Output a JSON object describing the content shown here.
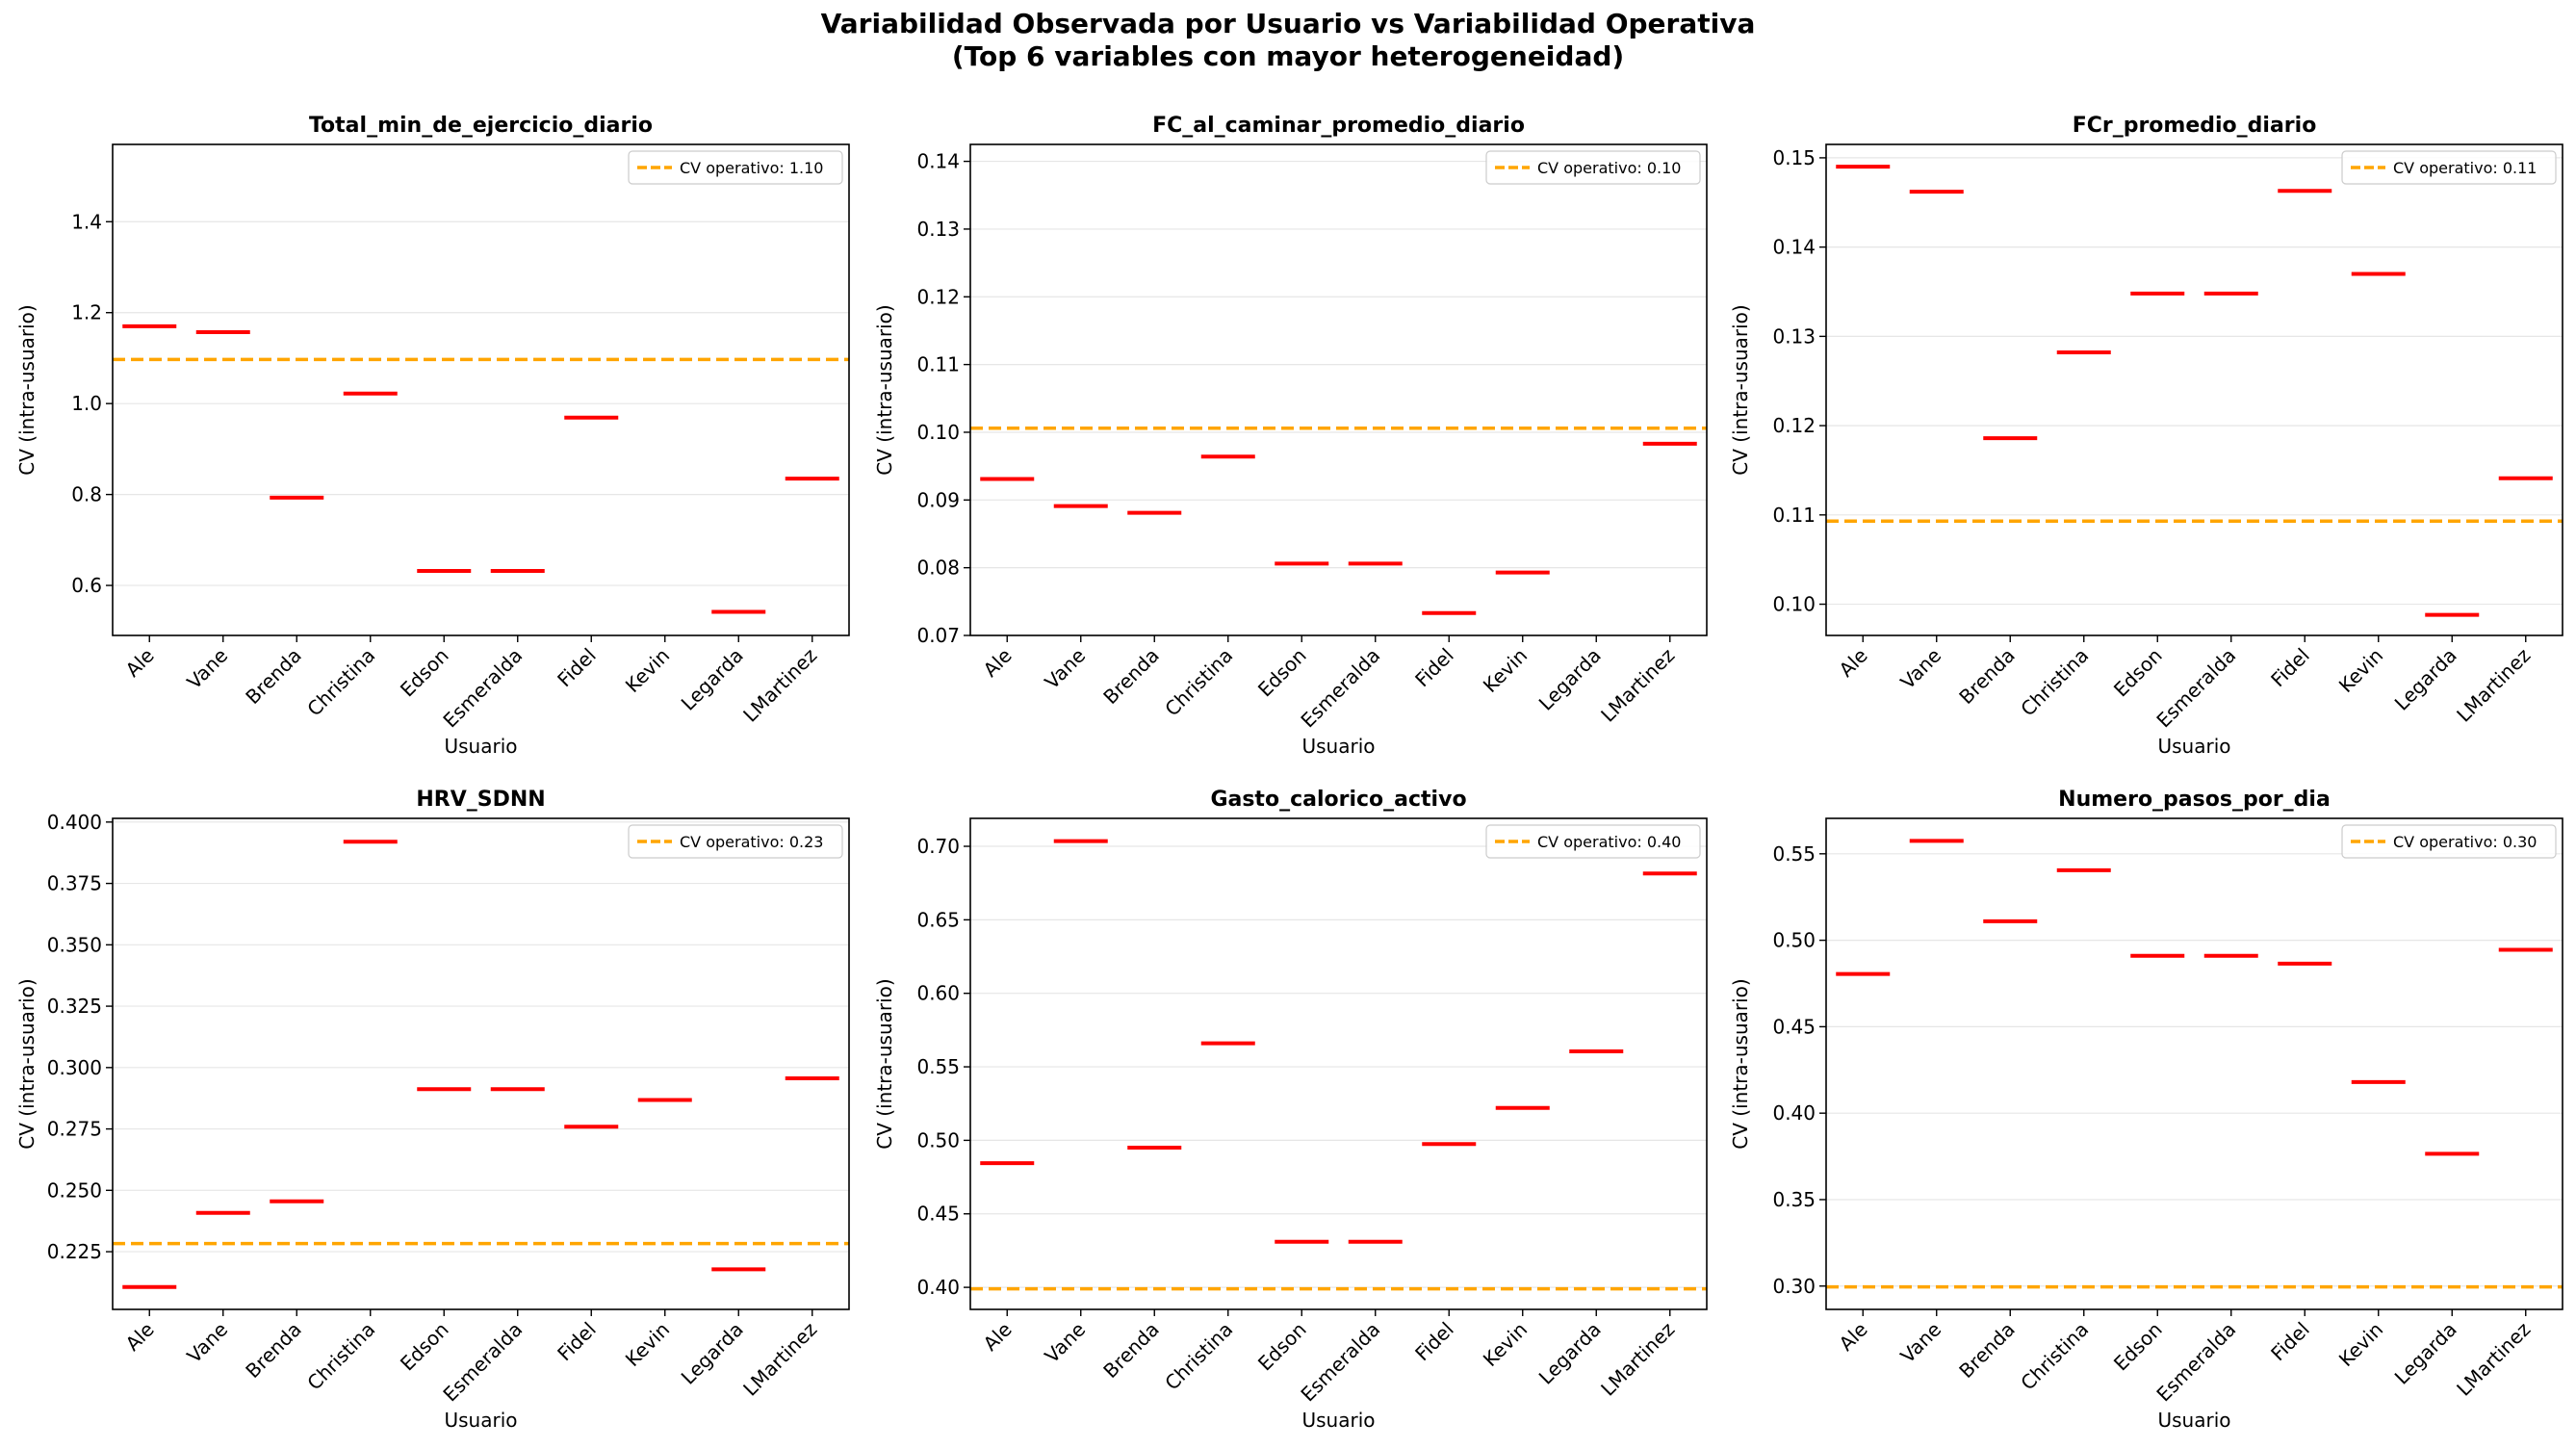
{
  "figure": {
    "title_line1": "Variabilidad Observada por Usuario vs Variabilidad Operativa",
    "title_line2": "(Top 6 variables con mayor heterogeneidad)"
  },
  "colors": {
    "marker": "#ff0000",
    "threshold": "#ffa500",
    "grid": "#e6e6e6"
  },
  "chart_data": [
    {
      "type": "scatter",
      "title": "Total_min_de_ejercicio_diario",
      "xlabel": "Usuario",
      "ylabel": "CV (intra-usuario)",
      "categories": [
        "Ale",
        "Vane",
        "Brenda",
        "Christina",
        "Edson",
        "Esmeralda",
        "Fidel",
        "Kevin",
        "Legarda",
        "LMartinez"
      ],
      "values": [
        1.17,
        1.157,
        0.793,
        1.022,
        0.632,
        0.632,
        0.969,
        null,
        0.542,
        0.835
      ],
      "threshold": 1.097,
      "legend": "CV operativo: 1.10",
      "legend_loc": "upper right",
      "ylim": [
        0.49,
        1.57
      ],
      "yticks": [
        0.6,
        0.8,
        1.0,
        1.2,
        1.4
      ],
      "ytick_labels": [
        "0.6",
        "0.8",
        "1.0",
        "1.2",
        "1.4"
      ]
    },
    {
      "type": "scatter",
      "title": "FC_al_caminar_promedio_diario",
      "xlabel": "Usuario",
      "ylabel": "CV (intra-usuario)",
      "categories": [
        "Ale",
        "Vane",
        "Brenda",
        "Christina",
        "Edson",
        "Esmeralda",
        "Fidel",
        "Kevin",
        "Legarda",
        "LMartinez"
      ],
      "values": [
        0.0931,
        0.0891,
        0.0881,
        0.0964,
        0.0806,
        0.0806,
        0.0733,
        0.0793,
        null,
        0.0983
      ],
      "threshold": 0.1006,
      "legend": "CV operativo: 0.10",
      "legend_loc": "upper right",
      "ylim": [
        0.07,
        0.1425
      ],
      "yticks": [
        0.07,
        0.08,
        0.09,
        0.1,
        0.11,
        0.12,
        0.13,
        0.14
      ],
      "ytick_labels": [
        "0.07",
        "0.08",
        "0.09",
        "0.10",
        "0.11",
        "0.12",
        "0.13",
        "0.14"
      ]
    },
    {
      "type": "scatter",
      "title": "FCr_promedio_diario",
      "xlabel": "Usuario",
      "ylabel": "CV (intra-usuario)",
      "categories": [
        "Ale",
        "Vane",
        "Brenda",
        "Christina",
        "Edson",
        "Esmeralda",
        "Fidel",
        "Kevin",
        "Legarda",
        "LMartinez"
      ],
      "values": [
        0.149,
        0.1462,
        0.1186,
        0.1282,
        0.1348,
        0.1348,
        0.1463,
        0.137,
        0.0988,
        0.1141
      ],
      "threshold": 0.1093,
      "legend": "CV operativo: 0.11",
      "legend_loc": "upper right",
      "ylim": [
        0.0965,
        0.1515
      ],
      "yticks": [
        0.1,
        0.11,
        0.12,
        0.13,
        0.14,
        0.15
      ],
      "ytick_labels": [
        "0.10",
        "0.11",
        "0.12",
        "0.13",
        "0.14",
        "0.15"
      ]
    },
    {
      "type": "scatter",
      "title": "HRV_SDNN",
      "xlabel": "Usuario",
      "ylabel": "CV (intra-usuario)",
      "categories": [
        "Ale",
        "Vane",
        "Brenda",
        "Christina",
        "Edson",
        "Esmeralda",
        "Fidel",
        "Kevin",
        "Legarda",
        "LMartinez"
      ],
      "values": [
        0.2106,
        0.2408,
        0.2455,
        0.392,
        0.2912,
        0.2912,
        0.2759,
        0.2868,
        0.2178,
        0.2956
      ],
      "threshold": 0.2283,
      "legend": "CV operativo: 0.23",
      "legend_loc": "upper right",
      "ylim": [
        0.2015,
        0.4015
      ],
      "yticks": [
        0.225,
        0.25,
        0.275,
        0.3,
        0.325,
        0.35,
        0.375,
        0.4
      ],
      "ytick_labels": [
        "0.225",
        "0.250",
        "0.275",
        "0.300",
        "0.325",
        "0.350",
        "0.375",
        "0.400"
      ]
    },
    {
      "type": "scatter",
      "title": "Gasto_calorico_activo",
      "xlabel": "Usuario",
      "ylabel": "CV (intra-usuario)",
      "categories": [
        "Ale",
        "Vane",
        "Brenda",
        "Christina",
        "Edson",
        "Esmeralda",
        "Fidel",
        "Kevin",
        "Legarda",
        "LMartinez"
      ],
      "values": [
        0.4845,
        0.7035,
        0.495,
        0.566,
        0.431,
        0.431,
        0.4975,
        0.522,
        0.5605,
        0.6815
      ],
      "threshold": 0.399,
      "legend": "CV operativo: 0.40",
      "legend_loc": "upper right",
      "ylim": [
        0.385,
        0.719
      ],
      "yticks": [
        0.4,
        0.45,
        0.5,
        0.55,
        0.6,
        0.65,
        0.7
      ],
      "ytick_labels": [
        "0.40",
        "0.45",
        "0.50",
        "0.55",
        "0.60",
        "0.65",
        "0.70"
      ]
    },
    {
      "type": "scatter",
      "title": "Numero_pasos_por_dia",
      "xlabel": "Usuario",
      "ylabel": "CV (intra-usuario)",
      "categories": [
        "Ale",
        "Vane",
        "Brenda",
        "Christina",
        "Edson",
        "Esmeralda",
        "Fidel",
        "Kevin",
        "Legarda",
        "LMartinez"
      ],
      "values": [
        0.4805,
        0.5575,
        0.511,
        0.5405,
        0.491,
        0.491,
        0.4865,
        0.418,
        0.3765,
        0.4945
      ],
      "threshold": 0.2995,
      "legend": "CV operativo: 0.30",
      "legend_loc": "upper right",
      "ylim": [
        0.2865,
        0.5705
      ],
      "yticks": [
        0.3,
        0.35,
        0.4,
        0.45,
        0.5,
        0.55
      ],
      "ytick_labels": [
        "0.30",
        "0.35",
        "0.40",
        "0.45",
        "0.50",
        "0.55"
      ]
    }
  ]
}
